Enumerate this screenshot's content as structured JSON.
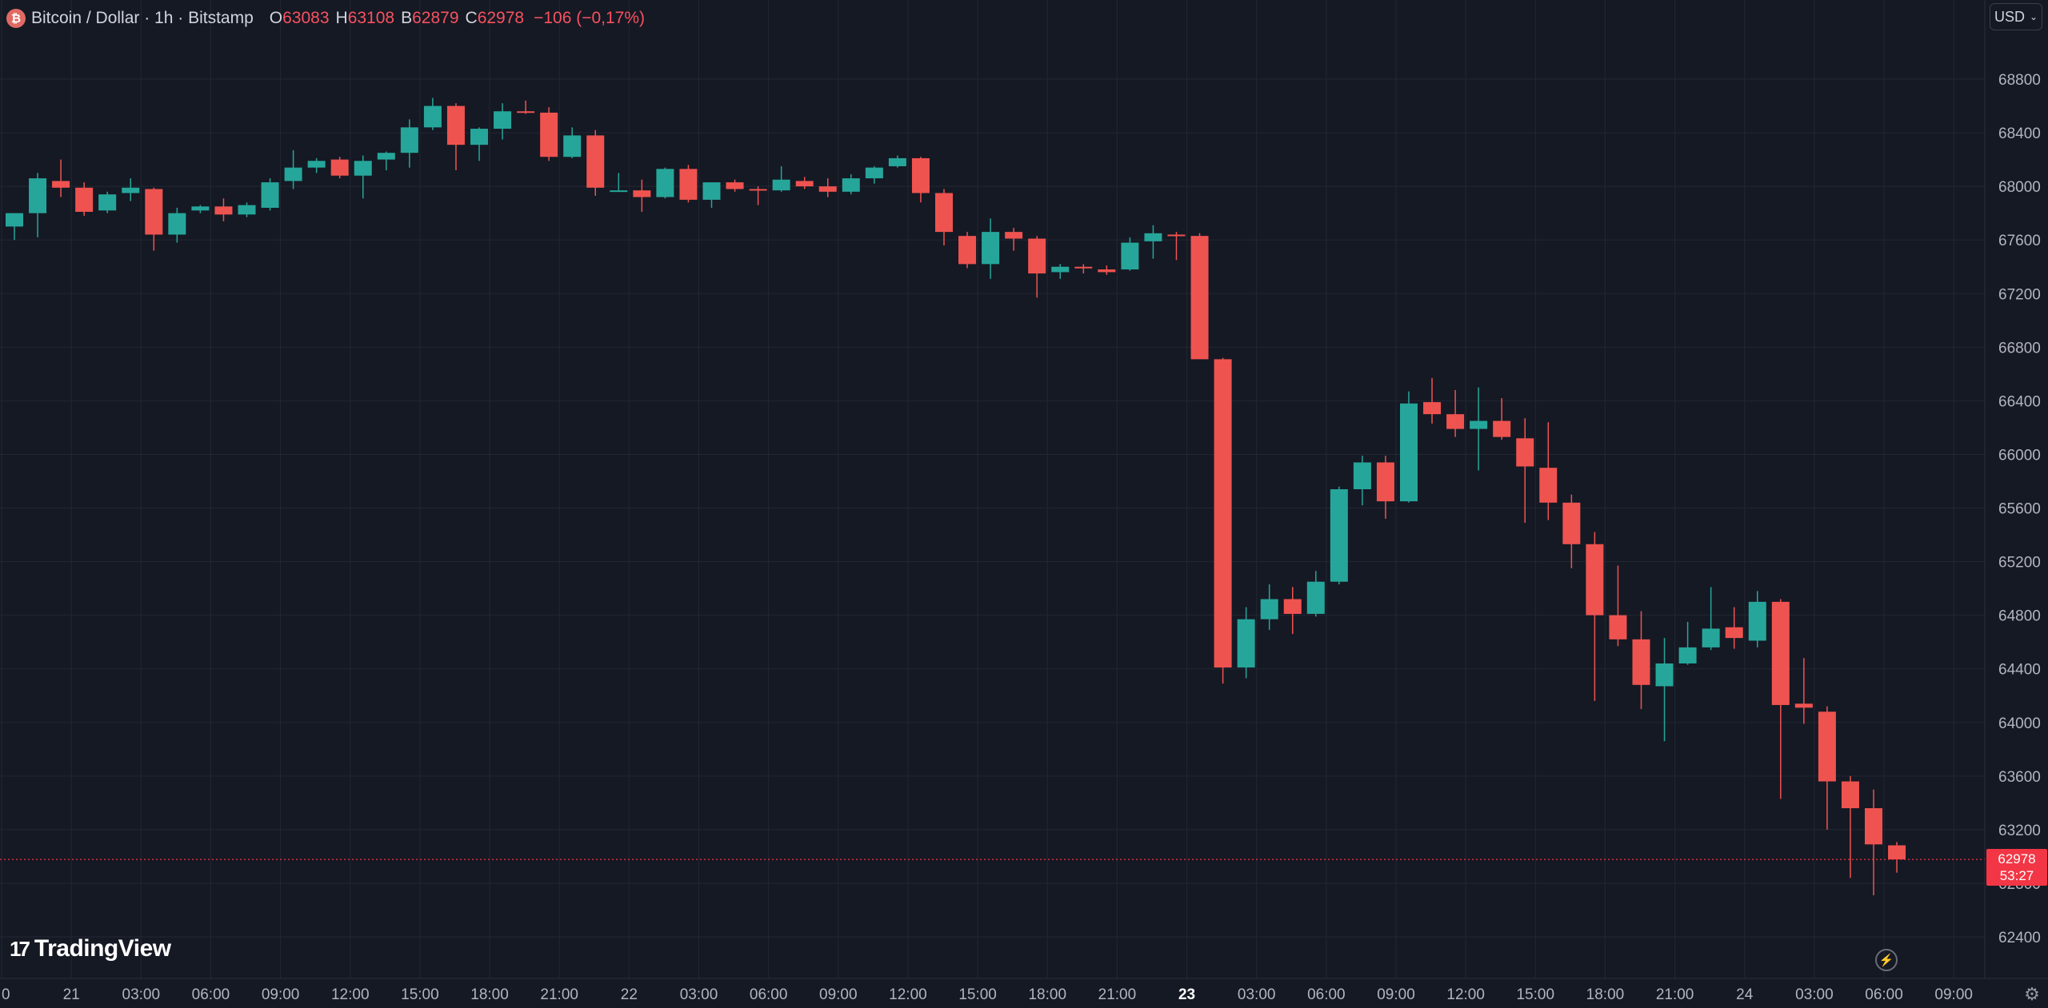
{
  "legend": {
    "symbol": "Bitcoin / Dollar · 1h · Bitstamp",
    "open_label": "O",
    "open": "63083",
    "high_label": "H",
    "high": "63108",
    "low_label": "B",
    "low": "62879",
    "close_label": "C",
    "close": "62978",
    "change": "−106 (−0,17%)"
  },
  "currency": "USD",
  "price_badge": {
    "price": "62978",
    "countdown": "53:27"
  },
  "branding": "TradingView",
  "icons": {
    "coin": "bitcoin-icon",
    "currency_menu": "chevron-down-icon",
    "alerts": "lightning-icon",
    "settings": "gear-icon"
  },
  "colors": {
    "up": "#26a69a",
    "down": "#ef5350",
    "background": "#151924",
    "grid": "#232733",
    "last_price": "#f23645",
    "text": "#d1d4dc",
    "axis_text": "#b2b5be"
  },
  "chart_data": {
    "type": "candlestick",
    "interval": "1h",
    "ylim": [
      62200,
      68950
    ],
    "y_ticks": [
      62400,
      62800,
      63200,
      63600,
      64000,
      64400,
      64800,
      65200,
      65600,
      66000,
      66400,
      66800,
      67200,
      67600,
      68000,
      68400,
      68800
    ],
    "x_ticks": [
      "0",
      "21",
      "03:00",
      "06:00",
      "09:00",
      "12:00",
      "15:00",
      "18:00",
      "21:00",
      "22",
      "03:00",
      "06:00",
      "09:00",
      "12:00",
      "15:00",
      "18:00",
      "21:00",
      "23",
      "03:00",
      "06:00",
      "09:00",
      "12:00",
      "15:00",
      "18:00",
      "21:00",
      "24",
      "03:00",
      "06:00",
      "09:00"
    ],
    "x_ticks_bold": [
      "23"
    ],
    "last_price": 62978,
    "grid": true,
    "candles": [
      {
        "o": 67700,
        "h": 67800,
        "l": 67600,
        "c": 67800
      },
      {
        "o": 67800,
        "h": 68100,
        "l": 67620,
        "c": 68060
      },
      {
        "o": 68040,
        "h": 68200,
        "l": 67920,
        "c": 67990
      },
      {
        "o": 67990,
        "h": 68030,
        "l": 67780,
        "c": 67810
      },
      {
        "o": 67820,
        "h": 67960,
        "l": 67800,
        "c": 67940
      },
      {
        "o": 67950,
        "h": 68060,
        "l": 67890,
        "c": 67990
      },
      {
        "o": 67980,
        "h": 67990,
        "l": 67520,
        "c": 67640
      },
      {
        "o": 67640,
        "h": 67840,
        "l": 67580,
        "c": 67800
      },
      {
        "o": 67820,
        "h": 67860,
        "l": 67800,
        "c": 67850
      },
      {
        "o": 67850,
        "h": 67910,
        "l": 67740,
        "c": 67790
      },
      {
        "o": 67790,
        "h": 67880,
        "l": 67770,
        "c": 67860
      },
      {
        "o": 67840,
        "h": 68060,
        "l": 67820,
        "c": 68030
      },
      {
        "o": 68040,
        "h": 68270,
        "l": 67980,
        "c": 68140
      },
      {
        "o": 68140,
        "h": 68210,
        "l": 68100,
        "c": 68190
      },
      {
        "o": 68200,
        "h": 68220,
        "l": 68060,
        "c": 68080
      },
      {
        "o": 68080,
        "h": 68230,
        "l": 67910,
        "c": 68190
      },
      {
        "o": 68200,
        "h": 68260,
        "l": 68120,
        "c": 68250
      },
      {
        "o": 68250,
        "h": 68500,
        "l": 68140,
        "c": 68440
      },
      {
        "o": 68440,
        "h": 68660,
        "l": 68420,
        "c": 68600
      },
      {
        "o": 68600,
        "h": 68620,
        "l": 68120,
        "c": 68310
      },
      {
        "o": 68310,
        "h": 68440,
        "l": 68190,
        "c": 68430
      },
      {
        "o": 68430,
        "h": 68620,
        "l": 68350,
        "c": 68560
      },
      {
        "o": 68560,
        "h": 68640,
        "l": 68540,
        "c": 68550
      },
      {
        "o": 68550,
        "h": 68590,
        "l": 68190,
        "c": 68220
      },
      {
        "o": 68220,
        "h": 68440,
        "l": 68210,
        "c": 68380
      },
      {
        "o": 68380,
        "h": 68420,
        "l": 67930,
        "c": 67990
      },
      {
        "o": 67970,
        "h": 68100,
        "l": 67960,
        "c": 67970
      },
      {
        "o": 67970,
        "h": 68050,
        "l": 67810,
        "c": 67920
      },
      {
        "o": 67920,
        "h": 68140,
        "l": 67910,
        "c": 68130
      },
      {
        "o": 68130,
        "h": 68160,
        "l": 67880,
        "c": 67900
      },
      {
        "o": 67900,
        "h": 68030,
        "l": 67840,
        "c": 68030
      },
      {
        "o": 68030,
        "h": 68050,
        "l": 67960,
        "c": 67980
      },
      {
        "o": 67980,
        "h": 68000,
        "l": 67860,
        "c": 67970
      },
      {
        "o": 67970,
        "h": 68150,
        "l": 67960,
        "c": 68050
      },
      {
        "o": 68040,
        "h": 68070,
        "l": 67980,
        "c": 68000
      },
      {
        "o": 68000,
        "h": 68060,
        "l": 67920,
        "c": 67960
      },
      {
        "o": 67960,
        "h": 68090,
        "l": 67940,
        "c": 68060
      },
      {
        "o": 68060,
        "h": 68150,
        "l": 68020,
        "c": 68140
      },
      {
        "o": 68150,
        "h": 68230,
        "l": 68140,
        "c": 68210
      },
      {
        "o": 68210,
        "h": 68220,
        "l": 67880,
        "c": 67950
      },
      {
        "o": 67950,
        "h": 67980,
        "l": 67560,
        "c": 67660
      },
      {
        "o": 67630,
        "h": 67660,
        "l": 67390,
        "c": 67420
      },
      {
        "o": 67420,
        "h": 67760,
        "l": 67310,
        "c": 67660
      },
      {
        "o": 67660,
        "h": 67690,
        "l": 67520,
        "c": 67610
      },
      {
        "o": 67610,
        "h": 67630,
        "l": 67170,
        "c": 67350
      },
      {
        "o": 67360,
        "h": 67420,
        "l": 67310,
        "c": 67400
      },
      {
        "o": 67400,
        "h": 67420,
        "l": 67350,
        "c": 67390
      },
      {
        "o": 67380,
        "h": 67410,
        "l": 67340,
        "c": 67360
      },
      {
        "o": 67380,
        "h": 67620,
        "l": 67370,
        "c": 67580
      },
      {
        "o": 67590,
        "h": 67710,
        "l": 67460,
        "c": 67650
      },
      {
        "o": 67640,
        "h": 67660,
        "l": 67450,
        "c": 67630
      },
      {
        "o": 67630,
        "h": 67650,
        "l": 66720,
        "c": 66710
      },
      {
        "o": 66710,
        "h": 66720,
        "l": 64290,
        "c": 64410
      },
      {
        "o": 64410,
        "h": 64860,
        "l": 64330,
        "c": 64770
      },
      {
        "o": 64770,
        "h": 65030,
        "l": 64690,
        "c": 64920
      },
      {
        "o": 64920,
        "h": 65010,
        "l": 64660,
        "c": 64810
      },
      {
        "o": 64810,
        "h": 65130,
        "l": 64790,
        "c": 65050
      },
      {
        "o": 65050,
        "h": 65760,
        "l": 65030,
        "c": 65740
      },
      {
        "o": 65740,
        "h": 65990,
        "l": 65620,
        "c": 65940
      },
      {
        "o": 65940,
        "h": 65990,
        "l": 65520,
        "c": 65650
      },
      {
        "o": 65650,
        "h": 66470,
        "l": 65640,
        "c": 66380
      },
      {
        "o": 66390,
        "h": 66570,
        "l": 66230,
        "c": 66300
      },
      {
        "o": 66300,
        "h": 66480,
        "l": 66130,
        "c": 66190
      },
      {
        "o": 66190,
        "h": 66500,
        "l": 65880,
        "c": 66250
      },
      {
        "o": 66250,
        "h": 66420,
        "l": 66110,
        "c": 66130
      },
      {
        "o": 66120,
        "h": 66270,
        "l": 65490,
        "c": 65910
      },
      {
        "o": 65900,
        "h": 66240,
        "l": 65510,
        "c": 65640
      },
      {
        "o": 65640,
        "h": 65700,
        "l": 65150,
        "c": 65330
      },
      {
        "o": 65330,
        "h": 65420,
        "l": 64160,
        "c": 64800
      },
      {
        "o": 64800,
        "h": 65170,
        "l": 64570,
        "c": 64620
      },
      {
        "o": 64620,
        "h": 64830,
        "l": 64100,
        "c": 64280
      },
      {
        "o": 64270,
        "h": 64630,
        "l": 63860,
        "c": 64440
      },
      {
        "o": 64440,
        "h": 64750,
        "l": 64430,
        "c": 64560
      },
      {
        "o": 64560,
        "h": 65010,
        "l": 64540,
        "c": 64700
      },
      {
        "o": 64710,
        "h": 64860,
        "l": 64550,
        "c": 64630
      },
      {
        "o": 64610,
        "h": 64980,
        "l": 64560,
        "c": 64900
      },
      {
        "o": 64900,
        "h": 64920,
        "l": 63430,
        "c": 64130
      },
      {
        "o": 64140,
        "h": 64480,
        "l": 63990,
        "c": 64110
      },
      {
        "o": 64080,
        "h": 64120,
        "l": 63200,
        "c": 63560
      },
      {
        "o": 63560,
        "h": 63600,
        "l": 62840,
        "c": 63360
      },
      {
        "o": 63360,
        "h": 63500,
        "l": 62710,
        "c": 63090
      },
      {
        "o": 63083,
        "h": 63108,
        "l": 62879,
        "c": 62978
      }
    ]
  }
}
